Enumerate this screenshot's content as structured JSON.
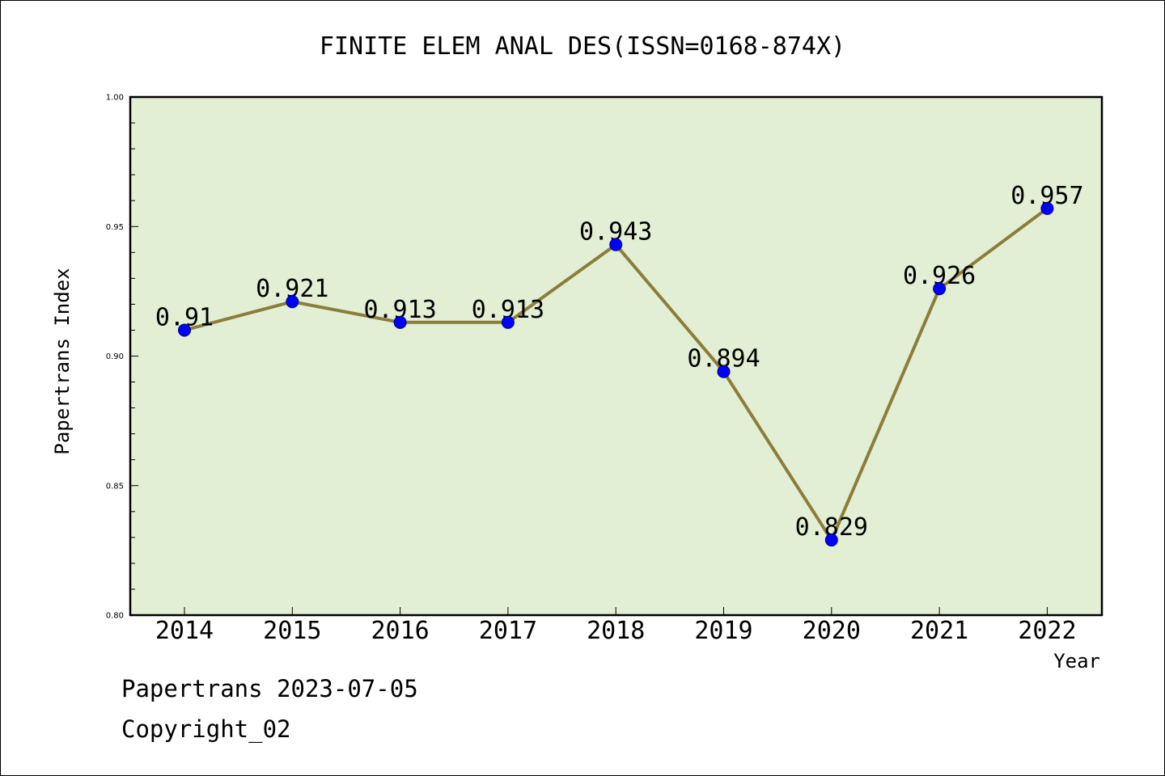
{
  "chart_data": {
    "type": "line",
    "title": "FINITE ELEM ANAL DES(ISSN=0168-874X)",
    "xlabel": "Year",
    "ylabel": "Papertrans Index",
    "categories": [
      "2014",
      "2015",
      "2016",
      "2017",
      "2018",
      "2019",
      "2020",
      "2021",
      "2022"
    ],
    "series": [
      {
        "values": [
          0.91,
          0.921,
          0.913,
          0.913,
          0.943,
          0.894,
          0.829,
          0.926,
          0.957
        ],
        "labels": [
          "0.91",
          "0.921",
          "0.913",
          "0.913",
          "0.943",
          "0.894",
          "0.829",
          "0.926",
          "0.957"
        ]
      }
    ],
    "ylim": [
      0.8,
      1.0
    ],
    "y_ticks": [
      "0.80",
      "0.85",
      "0.90",
      "0.95",
      "1.00"
    ],
    "grid": false,
    "legend": "none",
    "colors": {
      "plot_background": "#e2efd4",
      "line": "#8b7d3a",
      "marker": "#0000ff",
      "axes": "#000000"
    }
  },
  "footer": {
    "date_text": "Papertrans 2023-07-05",
    "copyright_text": "Copyright_02"
  }
}
